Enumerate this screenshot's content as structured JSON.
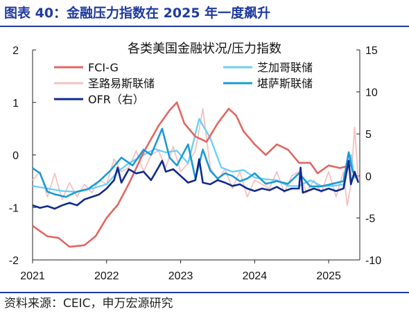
{
  "figure": {
    "title": "图表 40：金融压力指数在 2025 年一度飙升",
    "source": "资料来源：CEIC，申万宏源研究",
    "colors": {
      "accent": "#1f3aa0"
    }
  },
  "chart_data": {
    "type": "line",
    "title": "各类美国金融状况/压力指数",
    "xlabel": "",
    "ylabel": "",
    "x_ticks": [
      "2021",
      "2022",
      "2023",
      "2024",
      "2025"
    ],
    "xlim": [
      "2021-01",
      "2025-06"
    ],
    "y_left": {
      "ylim": [
        -2,
        2
      ],
      "ticks": [
        "2",
        "1",
        "0",
        "-1",
        "-2"
      ]
    },
    "y_right": {
      "ylim": [
        -10,
        15
      ],
      "ticks": [
        "15",
        "10",
        "5",
        "0",
        "-5",
        "-10"
      ]
    },
    "grid": false,
    "legend_position": "top",
    "series": [
      {
        "name": "FCI-G",
        "axis": "left",
        "color": "#e06660",
        "x": [
          2021.0,
          2021.2,
          2021.35,
          2021.5,
          2021.7,
          2021.85,
          2022.0,
          2022.15,
          2022.3,
          2022.5,
          2022.7,
          2022.85,
          2022.95,
          2023.05,
          2023.2,
          2023.35,
          2023.5,
          2023.65,
          2023.75,
          2023.85,
          2024.0,
          2024.15,
          2024.3,
          2024.45,
          2024.6,
          2024.75,
          2024.85,
          2025.0,
          2025.15,
          2025.3
        ],
        "y": [
          -1.35,
          -1.55,
          -1.58,
          -1.75,
          -1.72,
          -1.55,
          -1.2,
          -0.95,
          -0.55,
          0.05,
          0.55,
          0.85,
          1.0,
          0.6,
          0.35,
          0.25,
          0.6,
          0.88,
          0.75,
          0.45,
          0.2,
          0.0,
          0.2,
          0.1,
          -0.15,
          -0.15,
          -0.35,
          -0.2,
          -0.25,
          -0.2
        ]
      },
      {
        "name": "芝加哥联储",
        "axis": "right",
        "color": "#6ccff6",
        "x": [
          2021.0,
          2021.2,
          2021.4,
          2021.6,
          2021.8,
          2022.0,
          2022.15,
          2022.3,
          2022.5,
          2022.65,
          2022.8,
          2022.95,
          2023.1,
          2023.25,
          2023.4,
          2023.55,
          2023.7,
          2023.85,
          2024.0,
          2024.15,
          2024.3,
          2024.45,
          2024.6,
          2024.75,
          2024.9,
          2025.05,
          2025.2,
          2025.3,
          2025.35
        ],
        "y": [
          -1.2,
          -1.5,
          -1.8,
          -1.9,
          -1.5,
          -1.0,
          0.5,
          1.5,
          2.5,
          3.2,
          2.8,
          3.0,
          1.5,
          6.8,
          4.5,
          1.0,
          0.5,
          0.7,
          -0.2,
          -0.4,
          -0.5,
          -1.2,
          -1.2,
          -0.5,
          -1.2,
          -1.2,
          -1.0,
          2.5,
          -0.3
        ]
      },
      {
        "name": "圣路易斯联储",
        "axis": "right",
        "color": "#f4c0c0",
        "x": [
          2021.0,
          2021.1,
          2021.2,
          2021.3,
          2021.4,
          2021.5,
          2021.6,
          2021.7,
          2021.8,
          2021.9,
          2022.0,
          2022.1,
          2022.2,
          2022.3,
          2022.4,
          2022.5,
          2022.6,
          2022.7,
          2022.8,
          2022.9,
          2023.0,
          2023.1,
          2023.2,
          2023.3,
          2023.4,
          2023.5,
          2023.6,
          2023.7,
          2023.8,
          2023.9,
          2024.0,
          2024.1,
          2024.2,
          2024.3,
          2024.4,
          2024.5,
          2024.6,
          2024.7,
          2024.8,
          2024.9,
          2025.0,
          2025.1,
          2025.2,
          2025.25,
          2025.3,
          2025.35,
          2025.4
        ],
        "y": [
          -0.5,
          0.5,
          -2.5,
          0.3,
          -2.8,
          -0.8,
          -2.5,
          -1.0,
          -2.0,
          -0.5,
          -1.0,
          2.0,
          0.5,
          1.0,
          3.0,
          0.5,
          2.5,
          3.0,
          1.0,
          3.5,
          0.5,
          1.5,
          3.0,
          8.0,
          1.0,
          -0.5,
          0.8,
          -1.5,
          0.5,
          -2.5,
          -0.5,
          -1.0,
          -1.5,
          0.5,
          -2.0,
          0.0,
          0.5,
          -2.0,
          -0.5,
          -2.0,
          0.5,
          -2.5,
          0.5,
          -3.5,
          -1.0,
          5.8,
          -0.5
        ]
      },
      {
        "name": "堪萨斯联储",
        "axis": "left",
        "color": "#1a9ad6",
        "x": [
          2021.0,
          2021.1,
          2021.2,
          2021.3,
          2021.45,
          2021.6,
          2021.75,
          2021.9,
          2022.05,
          2022.2,
          2022.35,
          2022.5,
          2022.6,
          2022.75,
          2022.85,
          2022.95,
          2023.1,
          2023.2,
          2023.3,
          2023.4,
          2023.5,
          2023.6,
          2023.7,
          2023.8,
          2023.9,
          2024.0,
          2024.15,
          2024.3,
          2024.45,
          2024.6,
          2024.75,
          2024.9,
          2025.05,
          2025.2,
          2025.27,
          2025.32,
          2025.38
        ],
        "y": [
          -0.25,
          -0.35,
          -0.7,
          -0.75,
          -0.8,
          -0.7,
          -0.65,
          -0.5,
          -0.3,
          -0.05,
          -0.2,
          0.1,
          0.0,
          0.5,
          -0.05,
          -0.2,
          0.2,
          -0.45,
          0.1,
          -0.3,
          -0.45,
          -0.35,
          -0.4,
          -0.5,
          -0.45,
          -0.35,
          -0.55,
          -0.5,
          -0.55,
          -0.35,
          -0.6,
          -0.6,
          -0.55,
          -0.5,
          0.05,
          -0.3,
          -0.45
        ]
      },
      {
        "name": "OFR（右）",
        "axis": "right",
        "color": "#102a8c",
        "x": [
          2021.0,
          2021.1,
          2021.2,
          2021.3,
          2021.4,
          2021.5,
          2021.6,
          2021.7,
          2021.8,
          2021.9,
          2022.0,
          2022.1,
          2022.15,
          2022.2,
          2022.3,
          2022.4,
          2022.5,
          2022.6,
          2022.7,
          2022.75,
          2022.8,
          2022.9,
          2023.0,
          2023.1,
          2023.2,
          2023.25,
          2023.3,
          2023.4,
          2023.5,
          2023.6,
          2023.7,
          2023.8,
          2023.9,
          2024.0,
          2024.1,
          2024.2,
          2024.3,
          2024.4,
          2024.5,
          2024.6,
          2024.62,
          2024.65,
          2024.8,
          2024.9,
          2025.0,
          2025.1,
          2025.2,
          2025.27,
          2025.3,
          2025.35,
          2025.4
        ],
        "y": [
          -3.5,
          -3.8,
          -3.6,
          -3.9,
          -3.5,
          -3.2,
          -3.5,
          -2.8,
          -2.5,
          -2.2,
          -1.5,
          -0.5,
          1.0,
          -0.8,
          0.8,
          0.3,
          0.5,
          -0.5,
          1.0,
          1.8,
          0.5,
          0.8,
          0.0,
          -0.8,
          -0.5,
          2.0,
          -0.8,
          -1.0,
          -0.5,
          -0.8,
          -1.2,
          -1.0,
          -1.5,
          -1.8,
          -1.5,
          -1.7,
          -1.3,
          -1.8,
          -1.5,
          -1.5,
          1.0,
          -2.0,
          -1.5,
          -1.8,
          -1.5,
          -1.8,
          -1.5,
          1.8,
          -1.0,
          0.5,
          -0.8
        ]
      }
    ]
  }
}
